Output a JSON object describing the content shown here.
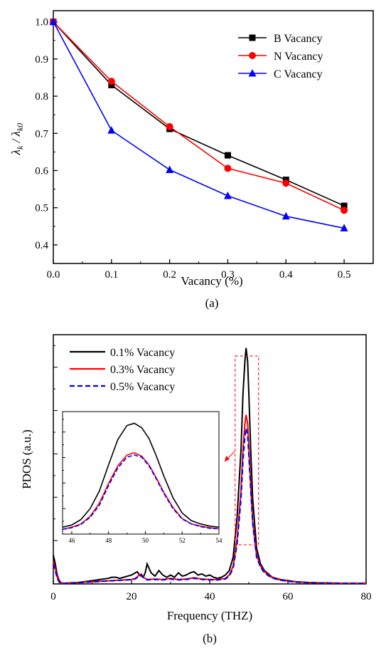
{
  "chart_data": [
    {
      "type": "line",
      "panel_label": "(a)",
      "xlabel": "Vacancy (%)",
      "ylabel_main": "λ",
      "ylabel_sub1": "k",
      "ylabel_div": " / λ",
      "ylabel_sub2": "k0",
      "xlim": [
        0.0,
        0.55
      ],
      "ylim": [
        0.35,
        1.03
      ],
      "xticks": [
        0.0,
        0.1,
        0.2,
        0.3,
        0.4,
        0.5
      ],
      "xtick_labels": [
        "0.0",
        "0.1",
        "0.2",
        "0.3",
        "0.4",
        "0.5"
      ],
      "yticks": [
        0.4,
        0.5,
        0.6,
        0.7,
        0.8,
        0.9,
        1.0
      ],
      "ytick_labels": [
        "0.4",
        "0.5",
        "0.6",
        "0.7",
        "0.8",
        "0.9",
        "1.0"
      ],
      "legend_position": "top-right",
      "x": [
        0.0,
        0.1,
        0.2,
        0.3,
        0.4,
        0.5
      ],
      "series": [
        {
          "name": "B Vacancy",
          "color": "#000000",
          "marker": "square",
          "values": [
            1.0,
            0.83,
            0.712,
            0.641,
            0.575,
            0.505
          ]
        },
        {
          "name": "N Vacancy",
          "color": "#ff0000",
          "marker": "circle",
          "values": [
            1.0,
            0.84,
            0.718,
            0.606,
            0.566,
            0.493
          ]
        },
        {
          "name": "C Vacancy",
          "color": "#0000ff",
          "marker": "triangle",
          "values": [
            1.0,
            0.708,
            0.602,
            0.532,
            0.477,
            0.445
          ]
        }
      ]
    },
    {
      "type": "line",
      "panel_label": "(b)",
      "xlabel": "Frequency (THZ)",
      "ylabel": "PDOS (a.u.)",
      "xlim": [
        0,
        80
      ],
      "xticks": [
        0,
        20,
        40,
        60,
        80
      ],
      "xtick_labels": [
        "0",
        "20",
        "40",
        "60",
        "80"
      ],
      "y_tick_labels_shown": false,
      "legend_position": "top-left",
      "peak_highlight_box": {
        "x_range": [
          46.5,
          52.5
        ],
        "style": "dashed",
        "color": "#ff0000"
      },
      "series": [
        {
          "name": "0.1% Vacancy",
          "color": "#000000",
          "dash": "solid",
          "x": [
            0,
            0.5,
            1,
            1.5,
            2,
            3,
            4,
            6,
            8,
            10,
            12,
            14,
            15,
            16,
            17,
            18,
            19,
            20,
            21,
            21.5,
            22,
            23,
            23.5,
            24,
            24.5,
            25,
            26,
            27,
            28,
            29,
            30,
            31,
            32,
            33,
            34,
            35,
            36,
            37,
            38,
            39,
            40,
            41,
            42,
            43,
            44,
            45,
            46,
            47,
            48,
            48.5,
            49,
            49.3,
            49.7,
            50,
            50.5,
            51,
            52,
            53,
            54,
            55,
            56,
            58,
            60,
            62,
            65,
            70,
            75,
            80
          ],
          "y": [
            0.13,
            0.09,
            0.04,
            0.015,
            0.005,
            0.003,
            0.005,
            0.006,
            0.01,
            0.015,
            0.02,
            0.025,
            0.03,
            0.03,
            0.025,
            0.03,
            0.035,
            0.04,
            0.05,
            0.055,
            0.04,
            0.03,
            0.05,
            0.09,
            0.07,
            0.05,
            0.035,
            0.06,
            0.04,
            0.03,
            0.04,
            0.03,
            0.05,
            0.035,
            0.04,
            0.05,
            0.055,
            0.04,
            0.045,
            0.035,
            0.04,
            0.03,
            0.025,
            0.03,
            0.04,
            0.06,
            0.12,
            0.3,
            0.6,
            0.85,
            1.0,
            1.06,
            1.0,
            0.86,
            0.6,
            0.38,
            0.16,
            0.09,
            0.06,
            0.045,
            0.03,
            0.02,
            0.015,
            0.01,
            0.007,
            0.004,
            0.003,
            0.003
          ]
        },
        {
          "name": "0.3% Vacancy",
          "color": "#ff0000",
          "dash": "solid",
          "x": [
            0,
            0.5,
            1,
            1.5,
            2,
            3,
            4,
            6,
            8,
            10,
            12,
            14,
            16,
            18,
            20,
            21,
            22,
            22.5,
            23,
            24,
            26,
            28,
            30,
            32,
            34,
            36,
            38,
            40,
            42,
            44,
            45,
            46,
            47,
            48,
            48.5,
            49,
            49.3,
            49.7,
            50,
            50.5,
            51,
            52,
            53,
            54,
            55,
            56,
            58,
            60,
            62,
            65,
            70,
            75,
            80
          ],
          "y": [
            0.1,
            0.07,
            0.03,
            0.01,
            0.004,
            0.003,
            0.004,
            0.005,
            0.008,
            0.01,
            0.012,
            0.014,
            0.016,
            0.018,
            0.02,
            0.025,
            0.04,
            0.045,
            0.03,
            0.02,
            0.022,
            0.02,
            0.025,
            0.02,
            0.022,
            0.028,
            0.022,
            0.02,
            0.02,
            0.025,
            0.04,
            0.08,
            0.2,
            0.42,
            0.6,
            0.72,
            0.76,
            0.72,
            0.62,
            0.44,
            0.28,
            0.13,
            0.08,
            0.055,
            0.04,
            0.028,
            0.018,
            0.013,
            0.009,
            0.006,
            0.004,
            0.003,
            0.003
          ]
        },
        {
          "name": "0.5% Vacancy",
          "color": "#0000ff",
          "dash": "dashed",
          "x": [
            0,
            0.5,
            1,
            1.5,
            2,
            3,
            4,
            6,
            8,
            10,
            12,
            14,
            16,
            18,
            20,
            21,
            22,
            22.5,
            23,
            24,
            26,
            28,
            30,
            32,
            34,
            36,
            38,
            40,
            42,
            44,
            45,
            46,
            47,
            48,
            48.5,
            49,
            49.3,
            49.7,
            50,
            50.5,
            51,
            52,
            53,
            54,
            55,
            56,
            58,
            60,
            62,
            65,
            70,
            75,
            80
          ],
          "y": [
            0.09,
            0.06,
            0.025,
            0.008,
            0.003,
            0.003,
            0.004,
            0.005,
            0.007,
            0.009,
            0.011,
            0.013,
            0.015,
            0.017,
            0.019,
            0.023,
            0.036,
            0.04,
            0.028,
            0.018,
            0.02,
            0.018,
            0.022,
            0.018,
            0.02,
            0.025,
            0.02,
            0.018,
            0.018,
            0.022,
            0.035,
            0.07,
            0.18,
            0.38,
            0.55,
            0.66,
            0.7,
            0.67,
            0.58,
            0.42,
            0.27,
            0.12,
            0.075,
            0.05,
            0.037,
            0.026,
            0.017,
            0.012,
            0.008,
            0.005,
            0.004,
            0.003,
            0.003
          ]
        }
      ],
      "inset": {
        "xlim": [
          45.5,
          54
        ],
        "xticks": [
          46,
          48,
          50,
          52,
          54
        ],
        "xtick_labels": [
          "46",
          "48",
          "50",
          "52",
          "54"
        ],
        "series": [
          {
            "name": "0.1% Vacancy",
            "color": "#000000",
            "dash": "solid",
            "x": [
              45.5,
              46,
              46.5,
              47,
              47.5,
              48,
              48.5,
              49,
              49.4,
              49.8,
              50.2,
              50.6,
              51,
              51.5,
              52,
              52.5,
              53,
              53.5,
              54
            ],
            "y": [
              0.05,
              0.07,
              0.12,
              0.22,
              0.38,
              0.62,
              0.85,
              0.98,
              1.0,
              0.96,
              0.86,
              0.7,
              0.52,
              0.32,
              0.18,
              0.11,
              0.08,
              0.06,
              0.05
            ]
          },
          {
            "name": "0.3% Vacancy",
            "color": "#ff0000",
            "dash": "solid",
            "x": [
              45.5,
              46,
              46.5,
              47,
              47.5,
              48,
              48.5,
              49,
              49.4,
              49.8,
              50.2,
              50.6,
              51,
              51.5,
              52,
              52.5,
              53,
              53.5,
              54
            ],
            "y": [
              0.03,
              0.05,
              0.08,
              0.15,
              0.27,
              0.45,
              0.61,
              0.71,
              0.73,
              0.7,
              0.62,
              0.5,
              0.37,
              0.23,
              0.13,
              0.08,
              0.06,
              0.045,
              0.035
            ]
          },
          {
            "name": "0.5% Vacancy",
            "color": "#0000ff",
            "dash": "dashed",
            "x": [
              45.5,
              46,
              46.5,
              47,
              47.5,
              48,
              48.5,
              49,
              49.4,
              49.8,
              50.2,
              50.6,
              51,
              51.5,
              52,
              52.5,
              53,
              53.5,
              54
            ],
            "y": [
              0.03,
              0.045,
              0.075,
              0.14,
              0.25,
              0.43,
              0.59,
              0.69,
              0.71,
              0.69,
              0.61,
              0.49,
              0.36,
              0.22,
              0.125,
              0.08,
              0.055,
              0.04,
              0.035
            ]
          }
        ]
      }
    }
  ]
}
